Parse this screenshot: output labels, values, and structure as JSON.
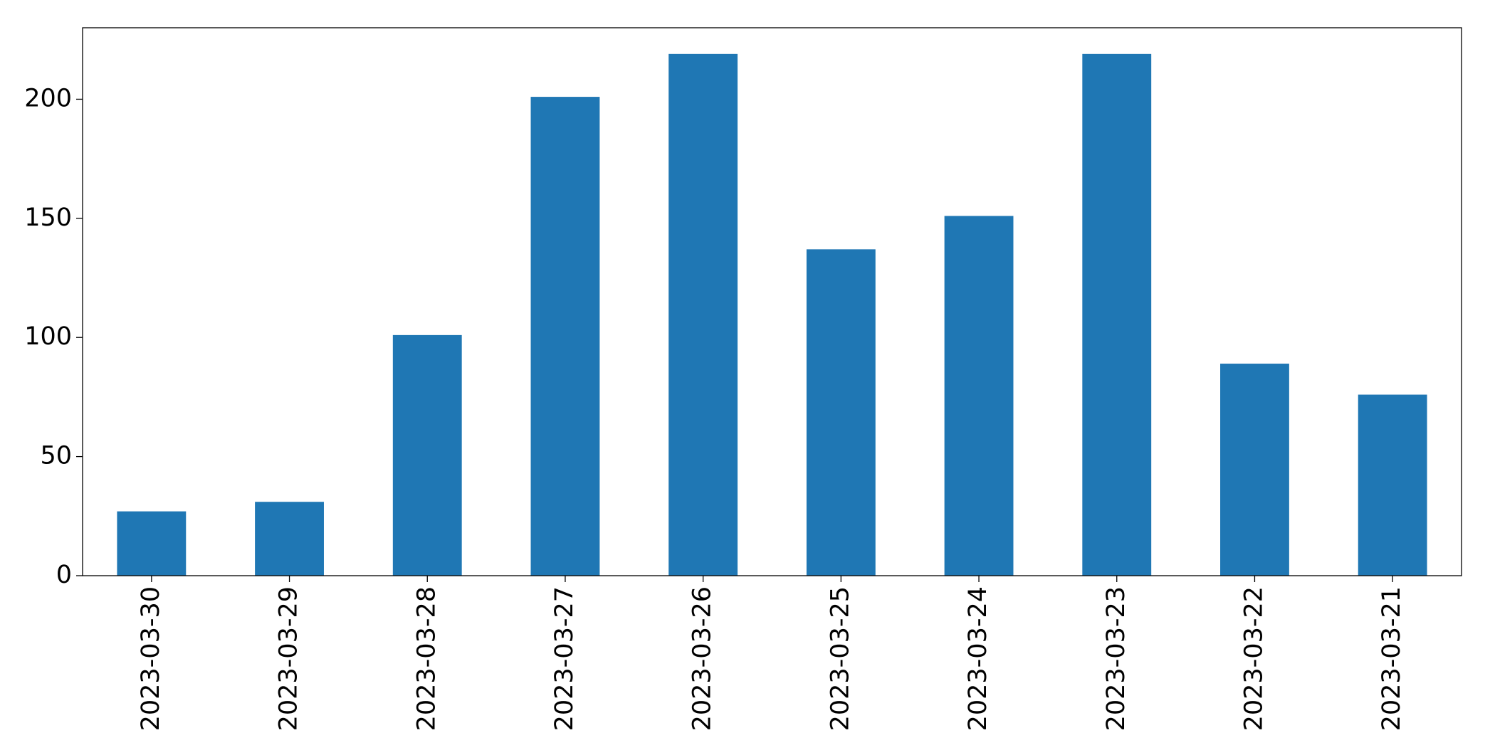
{
  "chart_data": {
    "type": "bar",
    "categories": [
      "2023-03-30",
      "2023-03-29",
      "2023-03-28",
      "2023-03-27",
      "2023-03-26",
      "2023-03-25",
      "2023-03-24",
      "2023-03-23",
      "2023-03-22",
      "2023-03-21"
    ],
    "values": [
      27,
      31,
      101,
      201,
      219,
      137,
      151,
      219,
      89,
      76
    ],
    "color": "#1f77b4",
    "ylim": [
      0,
      230
    ],
    "yticks": [
      0,
      50,
      100,
      150,
      200
    ],
    "grid": false
  }
}
